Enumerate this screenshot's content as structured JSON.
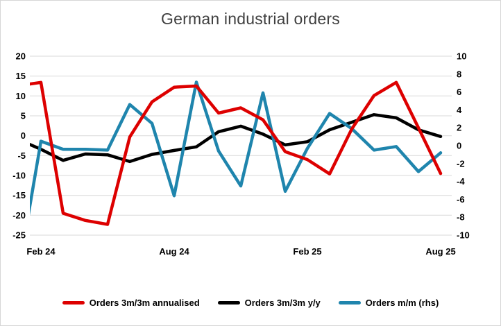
{
  "title": "German industrial orders",
  "legend": [
    {
      "label": "Orders 3m/3m annualised",
      "color": "#dd0000"
    },
    {
      "label": "Orders 3m/3m y/y",
      "color": "#000000"
    },
    {
      "label": "Orders m/m (rhs)",
      "color": "#1f85ad"
    }
  ],
  "colors": {
    "annualised": "#dd0000",
    "yoy": "#000000",
    "mom": "#1f85ad",
    "gridline": "#d9d9d9",
    "axis_text": "#000000",
    "title_text": "#404040"
  },
  "chart_data": {
    "type": "line",
    "title": "German industrial orders",
    "x": [
      "Jan 24",
      "Feb 24",
      "Mar 24",
      "Apr 24",
      "May 24",
      "Jun 24",
      "Jul 24",
      "Aug 24",
      "Sep 24",
      "Oct 24",
      "Nov 24",
      "Dec 24",
      "Jan 25",
      "Feb 25",
      "Mar 25",
      "Apr 25",
      "May 25",
      "Jun 25",
      "Jul 25",
      "Aug 25"
    ],
    "first_point_clipped_at_left_edge": true,
    "x_ticks": [
      {
        "label": "Feb 24",
        "index": 1
      },
      {
        "label": "Aug 24",
        "index": 7
      },
      {
        "label": "Feb 25",
        "index": 13
      },
      {
        "label": "Aug 25",
        "index": 19
      }
    ],
    "left_axis": {
      "max": 20,
      "min": -25,
      "ticks": [
        20,
        15,
        10,
        5,
        0,
        -5,
        -10,
        -15,
        -20,
        -25
      ]
    },
    "right_axis": {
      "max": 10,
      "min": -10,
      "ticks": [
        10,
        8,
        6,
        4,
        2,
        0,
        -2,
        -4,
        -6,
        -8,
        -10
      ]
    },
    "grid": true,
    "legend_position": "bottom",
    "series": [
      {
        "name": "Orders 3m/3m y/y",
        "axis": "left",
        "color": "#000000",
        "values": [
          -1.0,
          -3.4,
          -6.2,
          -4.6,
          -4.8,
          -6.5,
          -4.7,
          -3.7,
          -2.8,
          1.0,
          2.4,
          0.4,
          -2.3,
          -1.5,
          1.5,
          3.4,
          5.3,
          4.5,
          1.5,
          -0.2
        ]
      },
      {
        "name": "Orders m/m (rhs)",
        "axis": "right",
        "color": "#1f85ad",
        "values": [
          -14.0,
          0.5,
          -0.4,
          -0.4,
          -0.5,
          4.6,
          2.5,
          -5.6,
          7.1,
          -0.6,
          -4.5,
          5.9,
          -5.1,
          -0.3,
          3.6,
          1.9,
          -0.5,
          -0.1,
          -2.9,
          -0.8
        ]
      },
      {
        "name": "Orders 3m/3m annualised",
        "axis": "left",
        "color": "#dd0000",
        "values": [
          12.6,
          13.4,
          -19.5,
          -21.3,
          -22.3,
          -0.3,
          8.5,
          12.2,
          12.5,
          5.7,
          7.0,
          4.0,
          -4.0,
          -6.0,
          -9.6,
          1.7,
          10.1,
          13.4,
          2.0,
          -9.5
        ]
      }
    ]
  }
}
